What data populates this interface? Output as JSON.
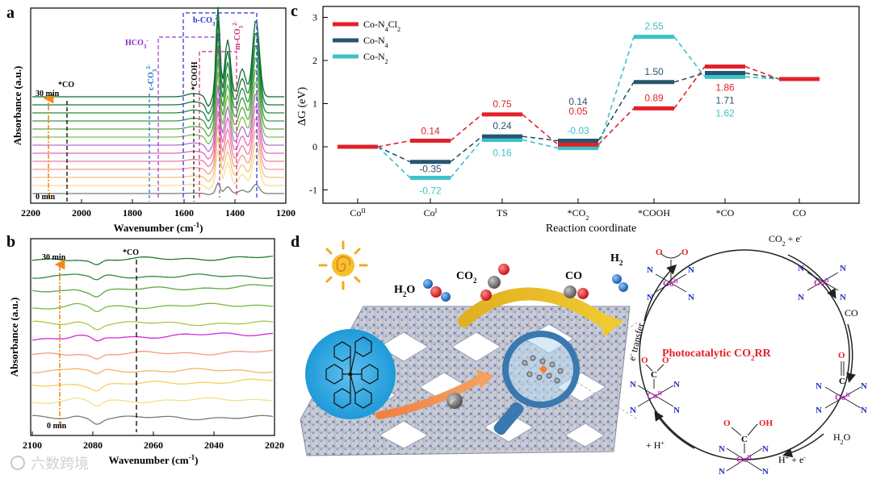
{
  "watermark": "六数跨境",
  "panels": {
    "a": {
      "label": "a",
      "xlabel": "Wavenumber (cm",
      "xlabel_sup": "-1",
      "xlabel_end": ")",
      "ylabel": "Absorbance (a.u.)",
      "xticks": [
        "2200",
        "2000",
        "1800",
        "1600",
        "1400",
        "1200"
      ],
      "time_top": "30 min",
      "time_bottom": "0 min",
      "annotations": {
        "co": "*CO",
        "cooh": "*COOH",
        "hco3": "HCO",
        "hco3_sub": "3",
        "hco3_sup": "-",
        "cco3": "c-CO",
        "cco3_sub": "3",
        "cco3_sup": "2-",
        "bco3": "b-CO",
        "bco3_sub": "3",
        "bco3_sup": "2-",
        "mco3": "m-CO",
        "mco3_sub": "3",
        "mco3_sup": "2-"
      }
    },
    "b": {
      "label": "b",
      "xlabel": "Wavenumber (cm",
      "xlabel_sup": "-1",
      "xlabel_end": ")",
      "ylabel": "Absorbance (a.u.)",
      "xticks": [
        "2100",
        "2080",
        "2060",
        "2040",
        "2020"
      ],
      "time_top": "30 min",
      "time_bottom": "0 min",
      "annotation_co": "*CO"
    },
    "c": {
      "label": "c",
      "chart_data": {
        "type": "line",
        "title": "",
        "xlabel": "Reaction coordinate",
        "ylabel": "ΔG (eV)",
        "ylim": [
          -1.5,
          3.2
        ],
        "yticks": [
          "3",
          "2",
          "1",
          "0",
          "-1"
        ],
        "categories": [
          "Co",
          "Co",
          "TS",
          "*CO",
          "*COOH",
          "*CO",
          "CO"
        ],
        "category_sup": [
          "II",
          "I",
          "",
          "",
          "",
          "",
          ""
        ],
        "category_sub": [
          "",
          "",
          "",
          "2",
          "",
          "",
          ""
        ],
        "legend": [
          {
            "name": "Co-N",
            "sub": "4",
            "tail": "Cl",
            "tail_sub": "2",
            "color": "#e3202a"
          },
          {
            "name": "Co-N",
            "sub": "4",
            "tail": "",
            "tail_sub": "",
            "color": "#28546e"
          },
          {
            "name": "Co-N",
            "sub": "2",
            "tail": "",
            "tail_sub": "",
            "color": "#3cc2c8"
          }
        ],
        "series": [
          {
            "name": "Co-N4Cl2",
            "color": "#e3202a",
            "values": [
              0,
              0.14,
              0.75,
              0.05,
              0.89,
              1.86,
              1.57
            ],
            "labels": [
              "",
              "0.14",
              "0.75",
              "0.05",
              "0.89",
              "1.86",
              ""
            ]
          },
          {
            "name": "Co-N4",
            "color": "#28546e",
            "values": [
              0,
              -0.35,
              0.24,
              0.14,
              1.5,
              1.71,
              1.57
            ],
            "labels": [
              "",
              "-0.35",
              "0.24",
              "0.14",
              "1.50",
              "1.71",
              ""
            ]
          },
          {
            "name": "Co-N2",
            "color": "#3cc2c8",
            "values": [
              0,
              -0.72,
              0.16,
              -0.03,
              2.55,
              1.62,
              1.57
            ],
            "labels": [
              "",
              "-0.72",
              "0.16",
              "-0.03",
              "2.55",
              "1.62",
              ""
            ]
          }
        ]
      }
    },
    "d": {
      "label": "d",
      "h2o": "H",
      "h2o_sub": "2",
      "h2o_end": "O",
      "co2": "CO",
      "co2_sub": "2",
      "co": "CO",
      "h2": "H",
      "h2_sub": "2",
      "electron": "e",
      "electron_sup": "-",
      "e_transfer": "e",
      "e_transfer_sup": "-",
      "e_transfer_end": " transfer",
      "cycle_title": "Photocatalytic CO",
      "cycle_title_sub": "2",
      "cycle_title_end": "RR",
      "cycle": {
        "step_co2e": "CO",
        "step_co2e_sub": "2",
        "step_co2e_end": " + e",
        "step_co2e_sup": "-",
        "step_co": "CO",
        "step_h2o": "H",
        "step_h2o_sub": "2",
        "step_h2o_end": "O",
        "step_hpe": "H",
        "step_hpe_sup": "+",
        "step_hpe_end": " + e",
        "step_hpe_sup2": "-",
        "step_hplus": "+ H",
        "step_hplus_sup": "+",
        "co_center": "Co",
        "co_ox": "II",
        "n": "N",
        "o": "O",
        "c": "C",
        "oh": "OH",
        "o_minus": "O",
        "o_minus_sup": "-"
      }
    }
  }
}
